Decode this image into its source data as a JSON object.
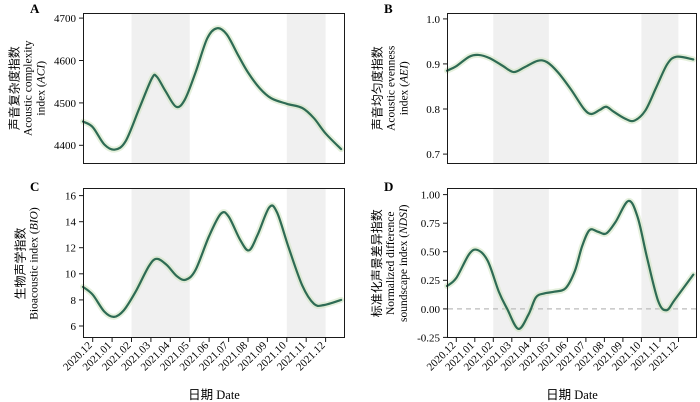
{
  "figure": {
    "x_axis_title": "日期 Date",
    "x_tick_labels": [
      "2020.12",
      "2021.01",
      "2021.02",
      "2021.03",
      "2021.04",
      "2021.05",
      "2021.06",
      "2021.07",
      "2021.08",
      "2021.09",
      "2021.10",
      "2021.11",
      "2021.12"
    ],
    "x_scale": "months since 2020.12 (0 = 2020.12, 12 = 2021.12)",
    "shaded_periods": [
      {
        "from": "2021.02",
        "to": "2021.05",
        "from_index": 2,
        "to_index": 5
      },
      {
        "from": "2021.10",
        "to": "2021.12",
        "from_index": 10,
        "to_index": 12
      }
    ],
    "colors": {
      "trend_line": "#2e6b54",
      "confidence_ribbon": "#cfe3bf",
      "shaded_band": "#f0f0f0",
      "zero_line": "#bbbbbb",
      "axis": "#1a1a1a"
    }
  },
  "chart_data": [
    {
      "type": "line",
      "panel": "A",
      "ylabel_lines": [
        "声音复杂度指数",
        "Acoustic complexity",
        "index (ACI)"
      ],
      "ytick_values": [
        4400,
        4500,
        4600,
        4700
      ],
      "ytick_labels": [
        "4400",
        "4500",
        "4600",
        "4700"
      ],
      "ylim": [
        4356,
        4712
      ],
      "zero_reference_line": false,
      "points": [
        [
          -0.5,
          4456
        ],
        [
          0,
          4443
        ],
        [
          0.6,
          4402
        ],
        [
          1.15,
          4390
        ],
        [
          1.7,
          4410
        ],
        [
          2.4,
          4487
        ],
        [
          3.05,
          4558
        ],
        [
          3.3,
          4562
        ],
        [
          3.75,
          4528
        ],
        [
          4.3,
          4491
        ],
        [
          4.75,
          4508
        ],
        [
          5.3,
          4572
        ],
        [
          5.9,
          4652
        ],
        [
          6.4,
          4676
        ],
        [
          6.9,
          4662
        ],
        [
          7.5,
          4612
        ],
        [
          8.0,
          4572
        ],
        [
          8.6,
          4535
        ],
        [
          9.2,
          4511
        ],
        [
          10.0,
          4498
        ],
        [
          10.8,
          4488
        ],
        [
          11.4,
          4464
        ],
        [
          12.0,
          4428
        ],
        [
          12.8,
          4391
        ]
      ]
    },
    {
      "type": "line",
      "panel": "B",
      "ylabel_lines": [
        "声音均匀度指数",
        "Acoustic evenness",
        "index (AEI)"
      ],
      "ytick_values": [
        0.7,
        0.8,
        0.9,
        1.0
      ],
      "ytick_labels": [
        "0.7",
        "0.8",
        "0.9",
        "1.0"
      ],
      "ylim": [
        0.678,
        1.013
      ],
      "zero_reference_line": false,
      "points": [
        [
          -0.5,
          0.885
        ],
        [
          0,
          0.895
        ],
        [
          0.7,
          0.916
        ],
        [
          1.2,
          0.92
        ],
        [
          1.8,
          0.913
        ],
        [
          2.5,
          0.896
        ],
        [
          3.1,
          0.882
        ],
        [
          3.7,
          0.893
        ],
        [
          4.4,
          0.907
        ],
        [
          4.9,
          0.904
        ],
        [
          5.5,
          0.881
        ],
        [
          6.2,
          0.843
        ],
        [
          6.9,
          0.8
        ],
        [
          7.3,
          0.789
        ],
        [
          7.75,
          0.798
        ],
        [
          8.1,
          0.805
        ],
        [
          8.5,
          0.794
        ],
        [
          9.1,
          0.779
        ],
        [
          9.6,
          0.774
        ],
        [
          10.2,
          0.796
        ],
        [
          10.8,
          0.848
        ],
        [
          11.4,
          0.9
        ],
        [
          11.9,
          0.916
        ],
        [
          12.8,
          0.91
        ]
      ]
    },
    {
      "type": "line",
      "panel": "C",
      "ylabel_lines": [
        "生物声学指数",
        "Bioacoustic index (BIO)"
      ],
      "ytick_values": [
        6,
        8,
        10,
        12,
        14,
        16
      ],
      "ytick_labels": [
        "6",
        "8",
        "10",
        "12",
        "14",
        "16"
      ],
      "ylim": [
        5.08,
        16.58
      ],
      "zero_reference_line": false,
      "points": [
        [
          -0.5,
          9.0
        ],
        [
          0,
          8.4
        ],
        [
          0.6,
          7.1
        ],
        [
          1.1,
          6.7
        ],
        [
          1.6,
          7.2
        ],
        [
          2.2,
          8.6
        ],
        [
          2.9,
          10.6
        ],
        [
          3.3,
          11.15
        ],
        [
          3.8,
          10.7
        ],
        [
          4.35,
          9.8
        ],
        [
          4.8,
          9.55
        ],
        [
          5.3,
          10.3
        ],
        [
          6.0,
          12.9
        ],
        [
          6.6,
          14.6
        ],
        [
          7.0,
          14.4
        ],
        [
          7.6,
          12.6
        ],
        [
          8.05,
          11.8
        ],
        [
          8.5,
          13.0
        ],
        [
          9.1,
          15.1
        ],
        [
          9.5,
          14.7
        ],
        [
          10.1,
          12.0
        ],
        [
          10.8,
          9.1
        ],
        [
          11.4,
          7.7
        ],
        [
          11.9,
          7.6
        ],
        [
          12.8,
          8.0
        ]
      ]
    },
    {
      "type": "line",
      "panel": "D",
      "ylabel_lines": [
        "标准化声景差异指数",
        "Normalized difference",
        "soundscape index (NDSI)"
      ],
      "ytick_values": [
        -0.25,
        0.0,
        0.25,
        0.5,
        0.75,
        1.0
      ],
      "ytick_labels": [
        "-0.25",
        "0.00",
        "0.25",
        "0.50",
        "0.75",
        "1.00"
      ],
      "ylim": [
        -0.255,
        1.058
      ],
      "zero_reference_line": true,
      "points": [
        [
          -0.5,
          0.2
        ],
        [
          0,
          0.27
        ],
        [
          0.7,
          0.48
        ],
        [
          1.15,
          0.515
        ],
        [
          1.7,
          0.42
        ],
        [
          2.3,
          0.15
        ],
        [
          2.75,
          0.0
        ],
        [
          3.35,
          -0.175
        ],
        [
          3.9,
          -0.05
        ],
        [
          4.3,
          0.1
        ],
        [
          4.75,
          0.135
        ],
        [
          5.3,
          0.15
        ],
        [
          5.9,
          0.18
        ],
        [
          6.4,
          0.33
        ],
        [
          6.8,
          0.55
        ],
        [
          7.2,
          0.69
        ],
        [
          7.65,
          0.675
        ],
        [
          8.1,
          0.66
        ],
        [
          8.6,
          0.76
        ],
        [
          9.3,
          0.945
        ],
        [
          9.8,
          0.8
        ],
        [
          10.3,
          0.45
        ],
        [
          10.9,
          0.07
        ],
        [
          11.35,
          -0.012
        ],
        [
          11.8,
          0.08
        ],
        [
          12.8,
          0.3
        ]
      ]
    }
  ]
}
